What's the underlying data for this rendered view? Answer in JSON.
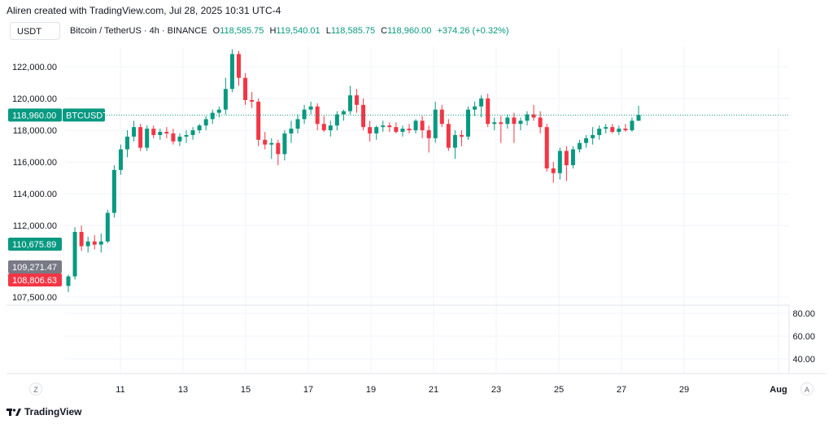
{
  "header": {
    "text": "Aliren created with TradingView.com, Jul 28, 2025 10:31 UTC-4"
  },
  "currency_button": "USDT",
  "ohlc": {
    "symbol": "Bitcoin / TetherUS · 4h · BINANCE",
    "o_label": "O",
    "o": "118,585.75",
    "h_label": "H",
    "h": "119,540.01",
    "l_label": "L",
    "l": "118,585.75",
    "c_label": "C",
    "c": "118,960.00",
    "change": "+374.26 (+0.32%)"
  },
  "colors": {
    "up": "#089981",
    "down": "#f23645",
    "grid": "#f0f3fa",
    "gray_tag": "#787b86"
  },
  "price_axis_labels": [
    "122,000.00",
    "120,000.00",
    "118,000.00",
    "116,000.00",
    "114,000.00",
    "112,000.00",
    "107,500.00"
  ],
  "indicator_axis_labels": [
    "80.00",
    "60.00",
    "40.00"
  ],
  "time_axis_labels": [
    "11",
    "13",
    "15",
    "17",
    "19",
    "21",
    "23",
    "25",
    "27",
    "29",
    "Aug"
  ],
  "price_tags": {
    "current": {
      "value": "118,960.00",
      "symbol": "BTCUSDT"
    },
    "green": "110,675.89",
    "gray": "109,271.47",
    "red": "108,806.63"
  },
  "bottom_left_button": "Z",
  "bottom_right_button": "A",
  "footer": {
    "brand": "TradingView"
  },
  "chart_data": {
    "type": "candlestick",
    "title": "Bitcoin / TetherUS · 4h · BINANCE",
    "y_axis_range": [
      107000,
      123300
    ],
    "x_ticks": [
      "11",
      "13",
      "15",
      "17",
      "19",
      "21",
      "23",
      "25",
      "27",
      "29",
      "Aug"
    ],
    "last_price": 118960.0,
    "candles": [
      {
        "o": 108200,
        "h": 108900,
        "l": 107800,
        "c": 108800
      },
      {
        "o": 108800,
        "h": 111900,
        "l": 108600,
        "c": 111600
      },
      {
        "o": 111600,
        "h": 112000,
        "l": 110400,
        "c": 110700
      },
      {
        "o": 110700,
        "h": 111300,
        "l": 110300,
        "c": 111000
      },
      {
        "o": 111000,
        "h": 111400,
        "l": 110500,
        "c": 110800
      },
      {
        "o": 110800,
        "h": 111500,
        "l": 110300,
        "c": 111000
      },
      {
        "o": 111000,
        "h": 113000,
        "l": 110900,
        "c": 112800
      },
      {
        "o": 112800,
        "h": 115800,
        "l": 112500,
        "c": 115500
      },
      {
        "o": 115500,
        "h": 117100,
        "l": 115200,
        "c": 116800
      },
      {
        "o": 116800,
        "h": 118000,
        "l": 116300,
        "c": 117600
      },
      {
        "o": 117600,
        "h": 118600,
        "l": 117300,
        "c": 118200
      },
      {
        "o": 118200,
        "h": 118400,
        "l": 116700,
        "c": 116900
      },
      {
        "o": 116900,
        "h": 118300,
        "l": 116700,
        "c": 118100
      },
      {
        "o": 118100,
        "h": 118300,
        "l": 117500,
        "c": 117700
      },
      {
        "o": 117700,
        "h": 118100,
        "l": 117400,
        "c": 117900
      },
      {
        "o": 117900,
        "h": 118200,
        "l": 117500,
        "c": 117800
      },
      {
        "o": 117800,
        "h": 118100,
        "l": 117100,
        "c": 117300
      },
      {
        "o": 117300,
        "h": 117800,
        "l": 117000,
        "c": 117600
      },
      {
        "o": 117600,
        "h": 118000,
        "l": 117200,
        "c": 117700
      },
      {
        "o": 117700,
        "h": 118200,
        "l": 117400,
        "c": 118000
      },
      {
        "o": 118000,
        "h": 118400,
        "l": 117800,
        "c": 118300
      },
      {
        "o": 118300,
        "h": 118900,
        "l": 118000,
        "c": 118700
      },
      {
        "o": 118700,
        "h": 119300,
        "l": 118400,
        "c": 119100
      },
      {
        "o": 119100,
        "h": 119500,
        "l": 118800,
        "c": 119300
      },
      {
        "o": 119300,
        "h": 121300,
        "l": 119000,
        "c": 120600
      },
      {
        "o": 120600,
        "h": 123100,
        "l": 120400,
        "c": 122800
      },
      {
        "o": 122800,
        "h": 123000,
        "l": 120800,
        "c": 121300
      },
      {
        "o": 121300,
        "h": 121600,
        "l": 119600,
        "c": 119900
      },
      {
        "o": 119900,
        "h": 120400,
        "l": 119400,
        "c": 119800
      },
      {
        "o": 119800,
        "h": 120000,
        "l": 117000,
        "c": 117400
      },
      {
        "o": 117400,
        "h": 117900,
        "l": 116800,
        "c": 117100
      },
      {
        "o": 117100,
        "h": 117500,
        "l": 116200,
        "c": 117200
      },
      {
        "o": 117200,
        "h": 117400,
        "l": 115800,
        "c": 116500
      },
      {
        "o": 116500,
        "h": 118000,
        "l": 116100,
        "c": 117800
      },
      {
        "o": 117800,
        "h": 118600,
        "l": 117200,
        "c": 118100
      },
      {
        "o": 118100,
        "h": 119000,
        "l": 117800,
        "c": 118700
      },
      {
        "o": 118700,
        "h": 119600,
        "l": 118400,
        "c": 119300
      },
      {
        "o": 119300,
        "h": 119800,
        "l": 119000,
        "c": 119500
      },
      {
        "o": 119500,
        "h": 119700,
        "l": 118000,
        "c": 118400
      },
      {
        "o": 118400,
        "h": 118900,
        "l": 117900,
        "c": 118000
      },
      {
        "o": 118000,
        "h": 118600,
        "l": 117600,
        "c": 118300
      },
      {
        "o": 118300,
        "h": 119200,
        "l": 118000,
        "c": 119000
      },
      {
        "o": 119000,
        "h": 119300,
        "l": 118600,
        "c": 119200
      },
      {
        "o": 119200,
        "h": 120800,
        "l": 119000,
        "c": 120200
      },
      {
        "o": 120200,
        "h": 120600,
        "l": 119100,
        "c": 119600
      },
      {
        "o": 119600,
        "h": 120000,
        "l": 118000,
        "c": 118200
      },
      {
        "o": 118200,
        "h": 118600,
        "l": 117300,
        "c": 117800
      },
      {
        "o": 117800,
        "h": 118300,
        "l": 117400,
        "c": 118200
      },
      {
        "o": 118200,
        "h": 118600,
        "l": 117900,
        "c": 118300
      },
      {
        "o": 118300,
        "h": 118500,
        "l": 117900,
        "c": 118200
      },
      {
        "o": 118200,
        "h": 118500,
        "l": 117800,
        "c": 117900
      },
      {
        "o": 117900,
        "h": 118300,
        "l": 117600,
        "c": 118100
      },
      {
        "o": 118100,
        "h": 118400,
        "l": 117800,
        "c": 118000
      },
      {
        "o": 118000,
        "h": 118700,
        "l": 117800,
        "c": 118600
      },
      {
        "o": 118600,
        "h": 118900,
        "l": 117500,
        "c": 118000
      },
      {
        "o": 118000,
        "h": 118300,
        "l": 116600,
        "c": 117500
      },
      {
        "o": 117500,
        "h": 119800,
        "l": 117200,
        "c": 119300
      },
      {
        "o": 119300,
        "h": 119600,
        "l": 118200,
        "c": 118400
      },
      {
        "o": 118400,
        "h": 118700,
        "l": 116700,
        "c": 116900
      },
      {
        "o": 116900,
        "h": 118000,
        "l": 116200,
        "c": 117700
      },
      {
        "o": 117700,
        "h": 118000,
        "l": 117000,
        "c": 117600
      },
      {
        "o": 117600,
        "h": 119500,
        "l": 117400,
        "c": 119300
      },
      {
        "o": 119300,
        "h": 119800,
        "l": 118900,
        "c": 119500
      },
      {
        "o": 119500,
        "h": 120200,
        "l": 118800,
        "c": 120000
      },
      {
        "o": 120000,
        "h": 120300,
        "l": 118200,
        "c": 118400
      },
      {
        "o": 118400,
        "h": 118800,
        "l": 118000,
        "c": 118500
      },
      {
        "o": 118500,
        "h": 118900,
        "l": 117200,
        "c": 118400
      },
      {
        "o": 118400,
        "h": 119000,
        "l": 118100,
        "c": 118800
      },
      {
        "o": 118800,
        "h": 119100,
        "l": 117200,
        "c": 118400
      },
      {
        "o": 118400,
        "h": 118800,
        "l": 118000,
        "c": 118600
      },
      {
        "o": 118600,
        "h": 119200,
        "l": 118300,
        "c": 119000
      },
      {
        "o": 119000,
        "h": 119600,
        "l": 118600,
        "c": 118800
      },
      {
        "o": 118800,
        "h": 119200,
        "l": 117800,
        "c": 118200
      },
      {
        "o": 118200,
        "h": 118400,
        "l": 115400,
        "c": 115600
      },
      {
        "o": 115600,
        "h": 116000,
        "l": 114700,
        "c": 115300
      },
      {
        "o": 115300,
        "h": 116900,
        "l": 114900,
        "c": 116700
      },
      {
        "o": 116700,
        "h": 117000,
        "l": 114800,
        "c": 115800
      },
      {
        "o": 115800,
        "h": 117000,
        "l": 115600,
        "c": 116800
      },
      {
        "o": 116800,
        "h": 117400,
        "l": 116600,
        "c": 117200
      },
      {
        "o": 117200,
        "h": 117700,
        "l": 116900,
        "c": 117500
      },
      {
        "o": 117500,
        "h": 118200,
        "l": 117100,
        "c": 117700
      },
      {
        "o": 117700,
        "h": 118300,
        "l": 117400,
        "c": 118100
      },
      {
        "o": 118100,
        "h": 118400,
        "l": 117800,
        "c": 118200
      },
      {
        "o": 118200,
        "h": 118400,
        "l": 117800,
        "c": 117900
      },
      {
        "o": 117900,
        "h": 118300,
        "l": 117700,
        "c": 118100
      },
      {
        "o": 118100,
        "h": 118400,
        "l": 117900,
        "c": 118000
      },
      {
        "o": 118000,
        "h": 118800,
        "l": 117900,
        "c": 118600
      },
      {
        "o": 118600,
        "h": 119540,
        "l": 118585,
        "c": 118960
      }
    ]
  }
}
